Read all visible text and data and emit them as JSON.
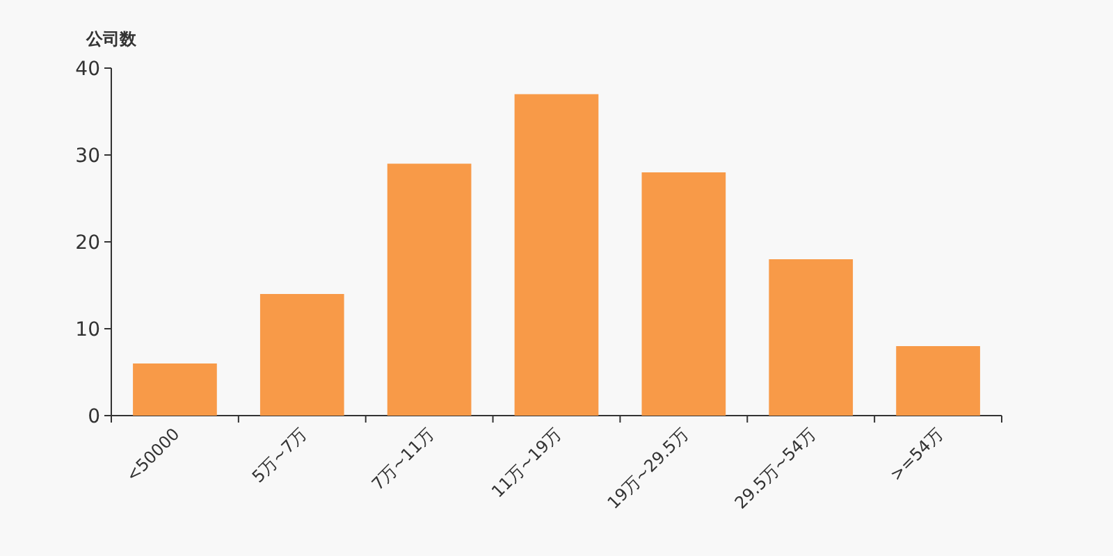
{
  "chart_data": {
    "type": "bar",
    "ylabel": "公司数",
    "categories": [
      "<50000",
      "5万~7万",
      "7万~11万",
      "11万~19万",
      "19万~29.5万",
      "29.5万~54万",
      ">=54万"
    ],
    "values": [
      6,
      14,
      29,
      37,
      28,
      18,
      8
    ],
    "color": "#f89a48",
    "ylim": [
      0,
      40
    ],
    "yticks": [
      0,
      10,
      20,
      30,
      40
    ],
    "grid": false
  }
}
